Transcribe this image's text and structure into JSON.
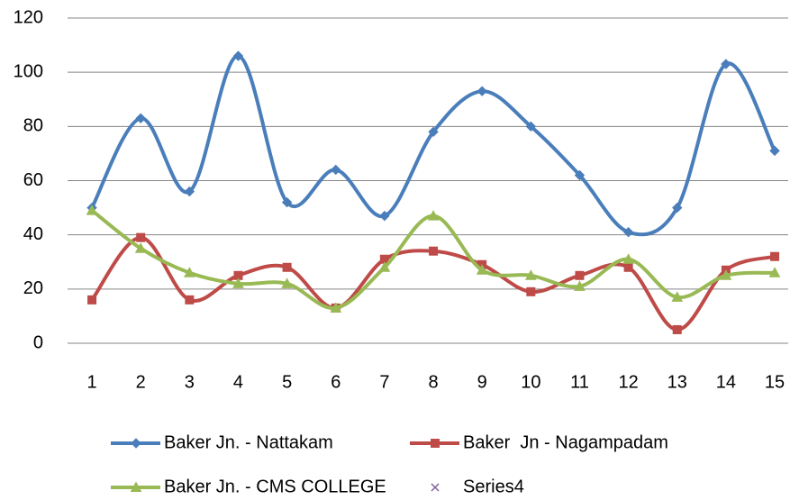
{
  "chart_data": {
    "type": "line",
    "categories": [
      "1",
      "2",
      "3",
      "4",
      "5",
      "6",
      "7",
      "8",
      "9",
      "10",
      "11",
      "12",
      "13",
      "14",
      "15"
    ],
    "series": [
      {
        "name": "Baker Jn. - Nattakam",
        "color": "#4a7ebb",
        "marker": "diamond",
        "values": [
          50,
          83,
          56,
          106,
          52,
          64,
          47,
          78,
          93,
          80,
          62,
          41,
          50,
          103,
          71
        ]
      },
      {
        "name": "Baker  Jn - Nagampadam",
        "color": "#be4b48",
        "marker": "square",
        "values": [
          16,
          39,
          16,
          25,
          28,
          13,
          31,
          34,
          29,
          19,
          25,
          28,
          5,
          27,
          32
        ]
      },
      {
        "name": "Baker Jn. - CMS COLLEGE",
        "color": "#98b954",
        "marker": "triangle",
        "values": [
          49,
          35,
          26,
          22,
          22,
          13,
          28,
          47,
          27,
          25,
          21,
          31,
          17,
          25,
          26
        ]
      },
      {
        "name": "Series4",
        "color": "#7d60a0",
        "marker": "x",
        "values": [
          null,
          null,
          null,
          null,
          null,
          null,
          null,
          null,
          null,
          null,
          null,
          null,
          null,
          null,
          null
        ]
      }
    ],
    "ylim": [
      0,
      120
    ],
    "yticks": [
      0,
      20,
      40,
      60,
      80,
      100,
      120
    ],
    "grid": true,
    "smooth": true,
    "legend": "bottom"
  }
}
